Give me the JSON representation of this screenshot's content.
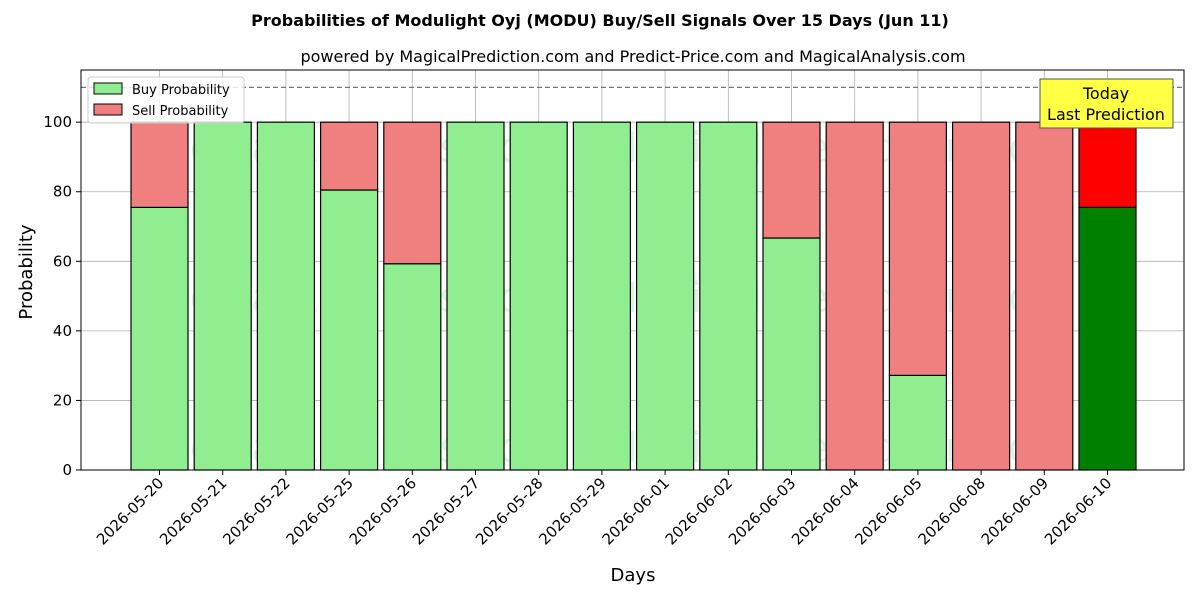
{
  "chart_data": {
    "type": "bar",
    "stacked": true,
    "title": "Probabilities of Modulight Oyj (MODU) Buy/Sell Signals Over 15 Days (Jun 11)",
    "subtitle": "powered by MagicalPrediction.com and Predict-Price.com and MagicalAnalysis.com",
    "xlabel": "Days",
    "ylabel": "Probability",
    "ylim": [
      0,
      115
    ],
    "yticks": [
      0,
      20,
      40,
      60,
      80,
      100
    ],
    "grid": true,
    "legend_position": "top-left",
    "reference_line": 110,
    "categories": [
      "2026-05-20",
      "2026-05-21",
      "2026-05-22",
      "2026-05-25",
      "2026-05-26",
      "2026-05-27",
      "2026-05-28",
      "2026-05-29",
      "2026-06-01",
      "2026-06-02",
      "2026-06-03",
      "2026-06-04",
      "2026-06-05",
      "2026-06-08",
      "2026-06-09",
      "2026-06-10"
    ],
    "series": [
      {
        "name": "Buy Probability",
        "color": "#90ee90",
        "values": [
          75.5,
          100,
          100,
          80.5,
          59.3,
          100,
          100,
          100,
          100,
          100,
          66.7,
          0,
          27.2,
          0,
          0,
          75.5
        ]
      },
      {
        "name": "Sell Probability",
        "color": "#f08080",
        "values": [
          24.5,
          0,
          0,
          19.5,
          40.7,
          0,
          0,
          0,
          0,
          0,
          33.3,
          100,
          72.8,
          100,
          100,
          24.5
        ]
      }
    ],
    "highlight": {
      "index": 15,
      "buy_color": "#008000",
      "sell_color": "#ff0000"
    },
    "annotation": {
      "line1": "Today",
      "line2": "Last Prediction",
      "background": "#ffff44"
    },
    "watermarks": [
      "MagicalAnalysis.com",
      "MagicalPrediction.com"
    ]
  }
}
